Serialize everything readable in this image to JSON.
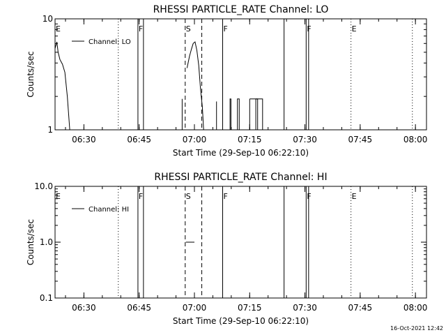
{
  "chart_data": [
    {
      "type": "line",
      "title": "RHESSI PARTICLE_RATE Channel: LO",
      "xlabel": "Start Time (29-Sep-10 06:22:10)",
      "ylabel": "Counts/sec",
      "yscale": "log",
      "ylim": [
        1,
        10
      ],
      "xlim": [
        "06:22:10",
        "08:03:00"
      ],
      "yticks": [
        "1",
        "10"
      ],
      "xticks": [
        "06:30",
        "06:45",
        "07:00",
        "07:15",
        "07:30",
        "07:45",
        "08:00"
      ],
      "legend": {
        "label": "Channel: LO",
        "placement": "top-left"
      },
      "series": [
        {
          "name": "Channel: LO",
          "segments": [
            {
              "x": [
                "06:22:10",
                "06:22:40",
                "06:23:00",
                "06:23:30",
                "06:24:10",
                "06:24:50",
                "06:25:30",
                "06:26:10"
              ],
              "y": [
                5.4,
                6.2,
                5.0,
                4.3,
                3.9,
                3.3,
                2.0,
                1.0
              ]
            },
            {
              "x": [
                "06:56:40",
                "06:56:40"
              ],
              "y": [
                1.0,
                1.9
              ]
            },
            {
              "x": [
                "06:58:00",
                "06:58:40",
                "06:59:10",
                "06:59:40",
                "07:00:10",
                "07:00:40",
                "07:01:10",
                "07:01:40",
                "07:02:10",
                "07:02:30"
              ],
              "y": [
                3.6,
                4.6,
                5.3,
                6.0,
                6.2,
                5.2,
                3.8,
                2.3,
                1.6,
                1.0
              ]
            },
            {
              "x": [
                "07:06:00",
                "07:06:00"
              ],
              "y": [
                1.0,
                1.8
              ]
            },
            {
              "x": [
                "07:09:40",
                "07:09:40",
                "07:09:55",
                "07:09:55"
              ],
              "y": [
                1.0,
                1.9,
                1.9,
                1.0
              ]
            },
            {
              "x": [
                "07:11:40",
                "07:11:40",
                "07:12:10",
                "07:12:10",
                "07:15:00",
                "07:15:00"
              ],
              "y": [
                1.0,
                1.9,
                1.9,
                1.0,
                1.0,
                1.9
              ]
            },
            {
              "x": [
                "07:15:00",
                "07:18:30",
                "07:18:30"
              ],
              "y": [
                1.9,
                1.9,
                1.0
              ]
            },
            {
              "x": [
                "07:16:40",
                "07:16:40",
                "07:17:10",
                "07:17:10"
              ],
              "y": [
                1.0,
                1.9,
                1.9,
                1.0
              ]
            }
          ]
        }
      ],
      "vertical_markers": [
        {
          "label": "E",
          "time": "06:22:10",
          "style": "solid"
        },
        {
          "label": "",
          "time": "06:39:20",
          "style": "dotted"
        },
        {
          "label": "F",
          "time": "06:44:40",
          "style": "solid"
        },
        {
          "label": "",
          "time": "06:46:10",
          "style": "solid"
        },
        {
          "label": "S",
          "time": "06:57:30",
          "style": "dashed"
        },
        {
          "label": "",
          "time": "07:02:00",
          "style": "dashed"
        },
        {
          "label": "F",
          "time": "07:07:40",
          "style": "solid"
        },
        {
          "label": "",
          "time": "07:24:20",
          "style": "solid"
        },
        {
          "label": "F",
          "time": "07:30:20",
          "style": "solid"
        },
        {
          "label": "",
          "time": "07:31:00",
          "style": "solid"
        },
        {
          "label": "E",
          "time": "07:42:30",
          "style": "dotted"
        },
        {
          "label": "",
          "time": "07:59:10",
          "style": "dotted"
        }
      ]
    },
    {
      "type": "line",
      "title": "RHESSI PARTICLE_RATE Channel: HI",
      "xlabel": "Start Time (29-Sep-10 06:22:10)",
      "ylabel": "Counts/sec",
      "yscale": "log",
      "ylim": [
        0.1,
        10
      ],
      "xlim": [
        "06:22:10",
        "08:03:00"
      ],
      "yticks": [
        "0.1",
        "1.0",
        "10.0"
      ],
      "xticks": [
        "06:30",
        "06:45",
        "07:00",
        "07:15",
        "07:30",
        "07:45",
        "08:00"
      ],
      "legend": {
        "label": "Channel: HI",
        "placement": "top-left"
      },
      "series": [
        {
          "name": "Channel: HI",
          "segments": [
            {
              "x": [
                "06:57:40",
                "07:00:00"
              ],
              "y": [
                1.0,
                1.0
              ]
            }
          ]
        }
      ],
      "vertical_markers": [
        {
          "label": "E",
          "time": "06:22:10",
          "style": "solid"
        },
        {
          "label": "",
          "time": "06:39:20",
          "style": "dotted"
        },
        {
          "label": "F",
          "time": "06:44:40",
          "style": "solid"
        },
        {
          "label": "",
          "time": "06:46:10",
          "style": "solid"
        },
        {
          "label": "S",
          "time": "06:57:30",
          "style": "dashed"
        },
        {
          "label": "",
          "time": "07:02:00",
          "style": "dashed"
        },
        {
          "label": "F",
          "time": "07:07:40",
          "style": "solid"
        },
        {
          "label": "",
          "time": "07:24:20",
          "style": "solid"
        },
        {
          "label": "F",
          "time": "07:30:20",
          "style": "solid"
        },
        {
          "label": "",
          "time": "07:31:00",
          "style": "solid"
        },
        {
          "label": "E",
          "time": "07:42:30",
          "style": "dotted"
        },
        {
          "label": "",
          "time": "07:59:10",
          "style": "dotted"
        }
      ]
    }
  ],
  "footer": {
    "timestamp": "16-Oct-2021 12:42"
  }
}
